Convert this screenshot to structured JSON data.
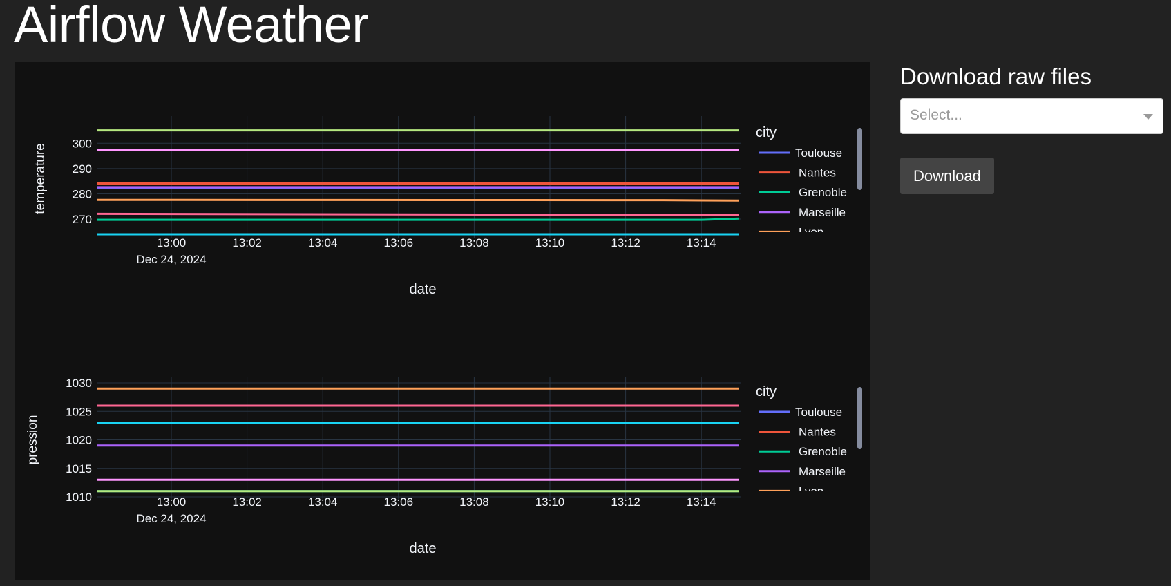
{
  "app": {
    "title": "Airflow Weather"
  },
  "download": {
    "title": "Download raw files",
    "select_placeholder": "Select...",
    "button_label": "Download"
  },
  "colors": {
    "page_bg": "#222222",
    "plot_bg": "#111111",
    "text": "#f2f5fa",
    "grid": "#283442"
  },
  "chart_data": [
    {
      "type": "line",
      "ylabel": "temperature",
      "xlabel": "date",
      "x_ticks": [
        "13:00",
        "13:02",
        "13:04",
        "13:06",
        "13:08",
        "13:10",
        "13:12",
        "13:14"
      ],
      "x_date_label": "Dec 24, 2024",
      "x_range_minutes": [
        -2.0,
        15.0
      ],
      "y_ticks": [
        270,
        280,
        290,
        300
      ],
      "ylim": [
        264,
        308
      ],
      "legend_title": "city",
      "legend_entries": [
        "Toulouse",
        "Nantes",
        "Grenoble",
        "Marseille",
        "Lyon"
      ],
      "series": [
        {
          "name": "Toulouse",
          "color": "#636efa",
          "x": [
            "12:58",
            "13:15"
          ],
          "y": [
            282.3,
            282.3
          ]
        },
        {
          "name": "Nantes",
          "color": "#ef553b",
          "x": [
            "12:58",
            "13:15"
          ],
          "y": [
            284.1,
            284.1
          ]
        },
        {
          "name": "Grenoble",
          "color": "#00cc96",
          "x": [
            "12:58",
            "13:14",
            "13:15"
          ],
          "y": [
            269.7,
            269.7,
            270.2
          ]
        },
        {
          "name": "Marseille",
          "color": "#ab63fa",
          "x": [
            "12:58",
            "13:15"
          ],
          "y": [
            282.6,
            282.6
          ]
        },
        {
          "name": "Lyon",
          "color": "#ffa15a",
          "x": [
            "12:58",
            "13:13",
            "13:15"
          ],
          "y": [
            277.6,
            277.5,
            277.3
          ]
        },
        {
          "color": "#19d3f3",
          "x": [
            "12:58",
            "13:15"
          ],
          "y": [
            264.0,
            264.0
          ]
        },
        {
          "color": "#ff6692",
          "x": [
            "12:58",
            "13:15"
          ],
          "y": [
            272.1,
            271.6
          ]
        },
        {
          "color": "#b6e880",
          "x": [
            "12:58",
            "13:15"
          ],
          "y": [
            305.1,
            305.1
          ]
        },
        {
          "color": "#ff97ff",
          "x": [
            "12:58",
            "13:15"
          ],
          "y": [
            297.2,
            297.2
          ]
        }
      ]
    },
    {
      "type": "line",
      "ylabel": "pression",
      "xlabel": "date",
      "x_ticks": [
        "13:00",
        "13:02",
        "13:04",
        "13:06",
        "13:08",
        "13:10",
        "13:12",
        "13:14"
      ],
      "x_date_label": "Dec 24, 2024",
      "x_range_minutes": [
        -2.0,
        15.0
      ],
      "y_ticks": [
        1010,
        1015,
        1020,
        1025,
        1030
      ],
      "ylim": [
        1010,
        1030
      ],
      "legend_title": "city",
      "legend_entries": [
        "Toulouse",
        "Nantes",
        "Grenoble",
        "Marseille",
        "Lyon"
      ],
      "series": [
        {
          "name": "Toulouse",
          "color": "#636efa",
          "x": [
            "12:58",
            "13:15"
          ],
          "y": [
            1026,
            1026
          ]
        },
        {
          "name": "Nantes",
          "color": "#ef553b",
          "x": [
            "12:58",
            "13:15"
          ],
          "y": [
            1026,
            1026
          ]
        },
        {
          "name": "Grenoble",
          "color": "#00cc96",
          "x": [
            "12:58",
            "13:15"
          ],
          "y": [
            1011,
            1011
          ]
        },
        {
          "name": "Marseille",
          "color": "#ab63fa",
          "x": [
            "12:58",
            "13:15"
          ],
          "y": [
            1019,
            1019
          ]
        },
        {
          "name": "Lyon",
          "color": "#ffa15a",
          "x": [
            "12:58",
            "13:15"
          ],
          "y": [
            1029,
            1029
          ]
        },
        {
          "color": "#19d3f3",
          "x": [
            "12:58",
            "13:15"
          ],
          "y": [
            1023,
            1023
          ]
        },
        {
          "color": "#ff6692",
          "x": [
            "12:58",
            "13:15"
          ],
          "y": [
            1026,
            1026
          ]
        },
        {
          "color": "#b6e880",
          "x": [
            "12:58",
            "13:15"
          ],
          "y": [
            1011,
            1011
          ]
        },
        {
          "color": "#ff97ff",
          "x": [
            "12:58",
            "13:15"
          ],
          "y": [
            1013,
            1013
          ]
        }
      ]
    }
  ]
}
